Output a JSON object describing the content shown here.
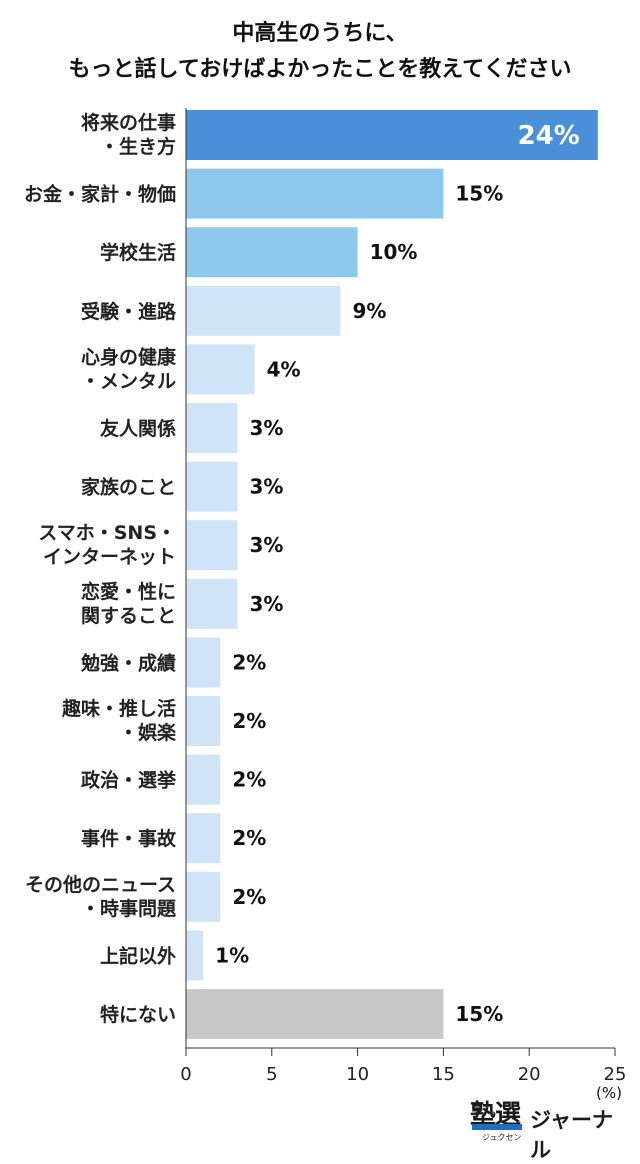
{
  "title_lines": [
    "中高生のうちに、",
    "もっと話しておけばよかったことを教えてください"
  ],
  "unit": "(%)",
  "logo": {
    "name": "塾選",
    "reading": "ジュクセン",
    "suffix": "ジャーナル",
    "accent_color": "#1e6fc2"
  },
  "chart_data": {
    "type": "bar",
    "orientation": "horizontal",
    "categories": [
      [
        "将来の仕事",
        "・生き方"
      ],
      [
        "お金・家計・物価"
      ],
      [
        "学校生活"
      ],
      [
        "受験・進路"
      ],
      [
        "心身の健康",
        "・メンタル"
      ],
      [
        "友人関係"
      ],
      [
        "家族のこと"
      ],
      [
        "スマホ・SNS・",
        "インターネット"
      ],
      [
        "恋愛・性に",
        "関すること"
      ],
      [
        "勉強・成績"
      ],
      [
        "趣味・推し活",
        "・娯楽"
      ],
      [
        "政治・選挙"
      ],
      [
        "事件・事故"
      ],
      [
        "その他のニュース",
        "・時事問題"
      ],
      [
        "上記以外"
      ],
      [
        "特にない"
      ]
    ],
    "values": [
      24,
      15,
      10,
      9,
      4,
      3,
      3,
      3,
      3,
      2,
      2,
      2,
      2,
      2,
      1,
      15
    ],
    "value_labels": [
      "24%",
      "15%",
      "10%",
      "9%",
      "4%",
      "3%",
      "3%",
      "3%",
      "3%",
      "2%",
      "2%",
      "2%",
      "2%",
      "2%",
      "1%",
      "15%"
    ],
    "colors": [
      "#4a90d9",
      "#8ec8ee",
      "#8ec8ee",
      "#cfe4f6",
      "#cfe4f6",
      "#cfe4f6",
      "#cfe4f6",
      "#cfe4f6",
      "#cfe4f6",
      "#cfe4f6",
      "#cfe4f6",
      "#cfe4f6",
      "#cfe4f6",
      "#cfe4f6",
      "#cfe4f6",
      "#c8c8c8"
    ],
    "label_inside": [
      true,
      false,
      false,
      false,
      false,
      false,
      false,
      false,
      false,
      false,
      false,
      false,
      false,
      false,
      false,
      false
    ],
    "xlim": [
      0,
      25
    ],
    "xticks": [
      0,
      5,
      10,
      15,
      20,
      25
    ],
    "xlabel": "(%)",
    "grid": false,
    "legend": "none"
  }
}
